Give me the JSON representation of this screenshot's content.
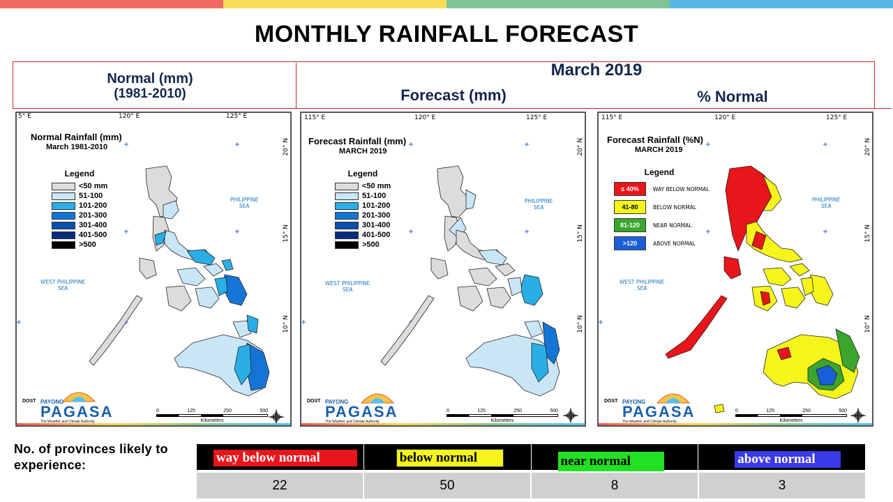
{
  "title": "MONTHLY RAINFALL FORECAST",
  "colors": {
    "topbar": [
      "#f06a63",
      "#f7dd5a",
      "#80c395",
      "#57b8e6"
    ],
    "frame": "#c62828",
    "header_text": "#14264e",
    "rain": [
      "#dcdcdc",
      "#c9e6f7",
      "#29aee6",
      "#1575d6",
      "#0a4fb0",
      "#062a80",
      "#000000"
    ],
    "pn": [
      "#e8151b",
      "#f5f51b",
      "#3aa62d",
      "#1a5fd8"
    ]
  },
  "headers": {
    "normal_line1": "Normal (mm)",
    "normal_line2": "(1981-2010)",
    "month": "March 2019",
    "forecast": "Forecast (mm)",
    "percent_normal": "% Normal"
  },
  "maps": {
    "normal": {
      "title": "Normal Rainfall (mm)",
      "subtitle": "March 1981-2010",
      "top_ticks": [
        "5° E",
        "120° E",
        "125° E"
      ],
      "right_ticks": [
        "20° N",
        "15° N",
        "10° N"
      ]
    },
    "forecast": {
      "title": "Forecast Rainfall (mm)",
      "subtitle": "MARCH 2019",
      "top_ticks": [
        "115° E",
        "120° E",
        "125° E"
      ],
      "right_ticks": [
        "20° N",
        "15° N",
        "10° N"
      ]
    },
    "percent": {
      "title": "Forecast Rainfall (%N)",
      "subtitle": "MARCH 2019",
      "top_ticks": [
        "115° E",
        "120° E",
        "125° E"
      ],
      "right_ticks": [
        "20° N",
        "15° N",
        "10° N"
      ]
    }
  },
  "legend": {
    "title": "Legend",
    "rain_items": [
      "<50 mm",
      "51-100",
      "101-200",
      "201-300",
      "301-400",
      "401-500",
      ">500"
    ],
    "pn_items": [
      {
        "swatch": "≤ 40%",
        "label": "WAY BELOW NORMAL"
      },
      {
        "swatch": "41-80",
        "label": "BELOW NORMAL"
      },
      {
        "swatch": "81-120",
        "label": "NEAR NORMAL"
      },
      {
        "swatch": ">120",
        "label": "ABOVE NORMAL"
      }
    ]
  },
  "sea_labels": {
    "philippine_sea_1": "PHILIPPINE",
    "philippine_sea_2": "SEA",
    "west_philippine_sea_1": "WEST PHILIPPINE",
    "west_philippine_sea_2": "SEA"
  },
  "logo": {
    "dost": "DOST",
    "payong": "PAYONG",
    "pagasa": "PAGASA",
    "tagline": "The Weather and Climate Authority"
  },
  "scale": {
    "ticks": [
      "0",
      "125",
      "250",
      "500"
    ],
    "units": "Kilometers"
  },
  "compass": {
    "n": "N",
    "s": "S",
    "e": "E",
    "w": "W"
  },
  "summary": {
    "label": "No. of provinces likely to experience:",
    "categories": [
      {
        "name": "way below normal",
        "count": "22",
        "bg": "#e8151b",
        "fg": "#ffffff"
      },
      {
        "name": "below normal",
        "count": "50",
        "bg": "#f5f51b",
        "fg": "#000000"
      },
      {
        "name": "near normal",
        "count": "8",
        "bg": "#22e022",
        "fg": "#000000"
      },
      {
        "name": "above normal",
        "count": "3",
        "bg": "#3a3ae8",
        "fg": "#ffffff"
      }
    ]
  }
}
